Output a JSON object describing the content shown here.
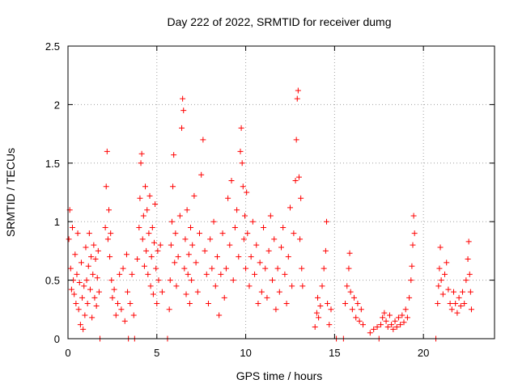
{
  "chart_data": {
    "type": "scatter",
    "title": "Day 222 of 2022, SRMTID for receiver dumg",
    "xlabel": "GPS time / hours",
    "ylabel": "SRMTID / TECUs",
    "xlim": [
      0,
      24
    ],
    "ylim": [
      0,
      2.5
    ],
    "xticks": [
      0,
      5,
      10,
      15,
      20
    ],
    "yticks": [
      0,
      0.5,
      1,
      1.5,
      2,
      2.5
    ],
    "xtick_labels": [
      "0",
      "5",
      "10",
      "15",
      "20"
    ],
    "ytick_labels": [
      "0",
      "0.5",
      "1",
      "1.5",
      "2",
      "2.5"
    ],
    "grid": true,
    "marker": "+",
    "colors": {
      "points": "#ff0000",
      "grid": "#a0a0a0",
      "axis": "#000000"
    },
    "series": [
      {
        "name": "SRMTID",
        "points": [
          [
            0.05,
            0.85
          ],
          [
            0.1,
            1.1
          ],
          [
            0.15,
            0.6
          ],
          [
            0.2,
            0.42
          ],
          [
            0.25,
            0.95
          ],
          [
            0.3,
            0.5
          ],
          [
            0.35,
            0.38
          ],
          [
            0.4,
            0.72
          ],
          [
            0.45,
            0.3
          ],
          [
            0.5,
            0.55
          ],
          [
            0.55,
            0.9
          ],
          [
            0.6,
            0.25
          ],
          [
            0.65,
            0.48
          ],
          [
            0.7,
            0.12
          ],
          [
            0.75,
            0.65
          ],
          [
            0.8,
            0.35
          ],
          [
            0.85,
            0.08
          ],
          [
            0.9,
            0.45
          ],
          [
            0.95,
            0.2
          ],
          [
            1.0,
            0.78
          ],
          [
            1.05,
            0.5
          ],
          [
            1.1,
            0.3
          ],
          [
            1.15,
            0.62
          ],
          [
            1.2,
            0.9
          ],
          [
            1.25,
            0.42
          ],
          [
            1.3,
            0.7
          ],
          [
            1.35,
            0.18
          ],
          [
            1.4,
            0.55
          ],
          [
            1.45,
            0.8
          ],
          [
            1.5,
            0.35
          ],
          [
            1.55,
            0.68
          ],
          [
            1.6,
            0.28
          ],
          [
            1.65,
            0.52
          ],
          [
            1.7,
            0.75
          ],
          [
            1.75,
            0.4
          ],
          [
            1.8,
            0.0
          ],
          [
            2.1,
            0.95
          ],
          [
            2.15,
            1.3
          ],
          [
            2.2,
            1.6
          ],
          [
            2.25,
            0.85
          ],
          [
            2.3,
            1.1
          ],
          [
            2.35,
            0.7
          ],
          [
            2.4,
            0.9
          ],
          [
            2.45,
            0.5
          ],
          [
            2.5,
            0.35
          ],
          [
            2.6,
            0.42
          ],
          [
            2.7,
            0.2
          ],
          [
            2.8,
            0.3
          ],
          [
            2.9,
            0.55
          ],
          [
            3.0,
            0.25
          ],
          [
            3.1,
            0.6
          ],
          [
            3.2,
            0.15
          ],
          [
            3.3,
            0.72
          ],
          [
            3.35,
            0.4
          ],
          [
            3.4,
            0.0
          ],
          [
            3.5,
            0.3
          ],
          [
            3.6,
            0.55
          ],
          [
            3.7,
            0.2
          ],
          [
            3.75,
            0.0
          ],
          [
            3.9,
            0.68
          ],
          [
            4.0,
            0.95
          ],
          [
            4.05,
            1.2
          ],
          [
            4.1,
            1.5
          ],
          [
            4.15,
            1.58
          ],
          [
            4.2,
            0.85
          ],
          [
            4.25,
            1.05
          ],
          [
            4.3,
            0.62
          ],
          [
            4.35,
            1.3
          ],
          [
            4.4,
            0.75
          ],
          [
            4.45,
            1.1
          ],
          [
            4.5,
            0.55
          ],
          [
            4.55,
            0.9
          ],
          [
            4.6,
            1.22
          ],
          [
            4.65,
            0.45
          ],
          [
            4.7,
            0.7
          ],
          [
            4.75,
            0.95
          ],
          [
            4.8,
            0.38
          ],
          [
            4.85,
            0.82
          ],
          [
            4.9,
            1.15
          ],
          [
            4.95,
            0.6
          ],
          [
            5.0,
            0.3
          ],
          [
            5.05,
            0.75
          ],
          [
            5.1,
            0.5
          ],
          [
            5.2,
            0.8
          ],
          [
            5.3,
            0.4
          ],
          [
            5.6,
            0.0
          ],
          [
            5.7,
            0.25
          ],
          [
            5.75,
            0.5
          ],
          [
            5.8,
            0.8
          ],
          [
            5.85,
            1.0
          ],
          [
            5.9,
            1.3
          ],
          [
            5.95,
            1.57
          ],
          [
            6.0,
            0.65
          ],
          [
            6.05,
            0.9
          ],
          [
            6.1,
            0.45
          ],
          [
            6.2,
            0.7
          ],
          [
            6.3,
            1.05
          ],
          [
            6.4,
            1.8
          ],
          [
            6.45,
            2.05
          ],
          [
            6.5,
            1.95
          ],
          [
            6.55,
            0.6
          ],
          [
            6.6,
            0.85
          ],
          [
            6.65,
            0.38
          ],
          [
            6.7,
            1.1
          ],
          [
            6.75,
            0.55
          ],
          [
            6.8,
            0.72
          ],
          [
            6.85,
            0.3
          ],
          [
            6.9,
            0.95
          ],
          [
            6.95,
            0.5
          ],
          [
            7.0,
            0.8
          ],
          [
            7.1,
            1.22
          ],
          [
            7.2,
            0.65
          ],
          [
            7.3,
            0.4
          ],
          [
            7.4,
            0.9
          ],
          [
            7.5,
            1.4
          ],
          [
            7.6,
            1.7
          ],
          [
            7.7,
            0.75
          ],
          [
            7.8,
            0.55
          ],
          [
            7.9,
            0.3
          ],
          [
            8.0,
            0.85
          ],
          [
            8.1,
            0.6
          ],
          [
            8.2,
            1.0
          ],
          [
            8.3,
            0.45
          ],
          [
            8.4,
            0.7
          ],
          [
            8.5,
            0.2
          ],
          [
            8.6,
            0.55
          ],
          [
            8.7,
            0.9
          ],
          [
            8.8,
            0.35
          ],
          [
            8.9,
            0.6
          ],
          [
            9.0,
            1.2
          ],
          [
            9.1,
            0.8
          ],
          [
            9.2,
            1.35
          ],
          [
            9.3,
            0.5
          ],
          [
            9.4,
            0.95
          ],
          [
            9.5,
            1.1
          ],
          [
            9.6,
            0.7
          ],
          [
            9.7,
            1.6
          ],
          [
            9.75,
            1.8
          ],
          [
            9.8,
            1.5
          ],
          [
            9.85,
            1.3
          ],
          [
            9.9,
            0.85
          ],
          [
            9.95,
            1.05
          ],
          [
            10.0,
            0.6
          ],
          [
            10.05,
            1.25
          ],
          [
            10.1,
            0.9
          ],
          [
            10.2,
            0.45
          ],
          [
            10.3,
            0.7
          ],
          [
            10.4,
            1.0
          ],
          [
            10.5,
            0.55
          ],
          [
            10.6,
            0.8
          ],
          [
            10.7,
            0.3
          ],
          [
            10.8,
            0.65
          ],
          [
            10.9,
            0.4
          ],
          [
            11.0,
            0.95
          ],
          [
            11.1,
            0.6
          ],
          [
            11.2,
            0.35
          ],
          [
            11.3,
            0.75
          ],
          [
            11.4,
            1.05
          ],
          [
            11.5,
            0.5
          ],
          [
            11.6,
            0.85
          ],
          [
            11.7,
            0.25
          ],
          [
            11.8,
            0.6
          ],
          [
            11.9,
            0.4
          ],
          [
            12.0,
            0.78
          ],
          [
            12.1,
            0.95
          ],
          [
            12.2,
            0.55
          ],
          [
            12.3,
            0.3
          ],
          [
            12.4,
            0.7
          ],
          [
            12.5,
            1.12
          ],
          [
            12.6,
            0.45
          ],
          [
            12.7,
            0.9
          ],
          [
            12.8,
            1.35
          ],
          [
            12.85,
            1.7
          ],
          [
            12.9,
            2.05
          ],
          [
            12.95,
            2.12
          ],
          [
            13.0,
            1.38
          ],
          [
            13.05,
            0.85
          ],
          [
            13.1,
            1.2
          ],
          [
            13.15,
            0.6
          ],
          [
            13.2,
            0.45
          ],
          [
            13.9,
            0.1
          ],
          [
            14.0,
            0.22
          ],
          [
            14.05,
            0.35
          ],
          [
            14.1,
            0.18
          ],
          [
            14.2,
            0.28
          ],
          [
            14.3,
            0.45
          ],
          [
            14.4,
            0.6
          ],
          [
            14.5,
            0.75
          ],
          [
            14.55,
            1.0
          ],
          [
            14.6,
            0.3
          ],
          [
            14.7,
            0.12
          ],
          [
            14.8,
            0.25
          ],
          [
            15.1,
            0.0
          ],
          [
            15.5,
            0.0
          ],
          [
            15.6,
            0.3
          ],
          [
            15.7,
            0.45
          ],
          [
            15.8,
            0.6
          ],
          [
            15.85,
            0.73
          ],
          [
            15.9,
            0.4
          ],
          [
            16.0,
            0.25
          ],
          [
            16.1,
            0.35
          ],
          [
            16.2,
            0.18
          ],
          [
            16.3,
            0.3
          ],
          [
            16.4,
            0.15
          ],
          [
            16.5,
            0.25
          ],
          [
            16.6,
            0.12
          ],
          [
            17.0,
            0.05
          ],
          [
            17.2,
            0.08
          ],
          [
            17.4,
            0.1
          ],
          [
            17.5,
            0.0
          ],
          [
            17.6,
            0.12
          ],
          [
            17.7,
            0.18
          ],
          [
            17.8,
            0.22
          ],
          [
            17.9,
            0.15
          ],
          [
            18.0,
            0.1
          ],
          [
            18.1,
            0.2
          ],
          [
            18.2,
            0.12
          ],
          [
            18.3,
            0.08
          ],
          [
            18.4,
            0.15
          ],
          [
            18.5,
            0.1
          ],
          [
            18.6,
            0.18
          ],
          [
            18.7,
            0.12
          ],
          [
            18.8,
            0.2
          ],
          [
            18.9,
            0.14
          ],
          [
            19.0,
            0.25
          ],
          [
            19.1,
            0.18
          ],
          [
            19.2,
            0.35
          ],
          [
            19.3,
            0.5
          ],
          [
            19.35,
            0.62
          ],
          [
            19.4,
            0.8
          ],
          [
            19.45,
            1.05
          ],
          [
            19.5,
            0.9
          ],
          [
            20.7,
            0.0
          ],
          [
            20.8,
            0.3
          ],
          [
            20.85,
            0.45
          ],
          [
            20.9,
            0.6
          ],
          [
            20.95,
            0.78
          ],
          [
            21.0,
            0.5
          ],
          [
            21.1,
            0.38
          ],
          [
            21.2,
            0.55
          ],
          [
            21.3,
            0.65
          ],
          [
            21.4,
            0.42
          ],
          [
            21.5,
            0.3
          ],
          [
            21.6,
            0.25
          ],
          [
            21.7,
            0.4
          ],
          [
            21.8,
            0.3
          ],
          [
            21.9,
            0.22
          ],
          [
            22.0,
            0.35
          ],
          [
            22.1,
            0.28
          ],
          [
            22.2,
            0.4
          ],
          [
            22.3,
            0.3
          ],
          [
            22.4,
            0.5
          ],
          [
            22.5,
            0.68
          ],
          [
            22.55,
            0.83
          ],
          [
            22.6,
            0.55
          ],
          [
            22.65,
            0.4
          ],
          [
            22.7,
            0.25
          ]
        ]
      }
    ]
  }
}
